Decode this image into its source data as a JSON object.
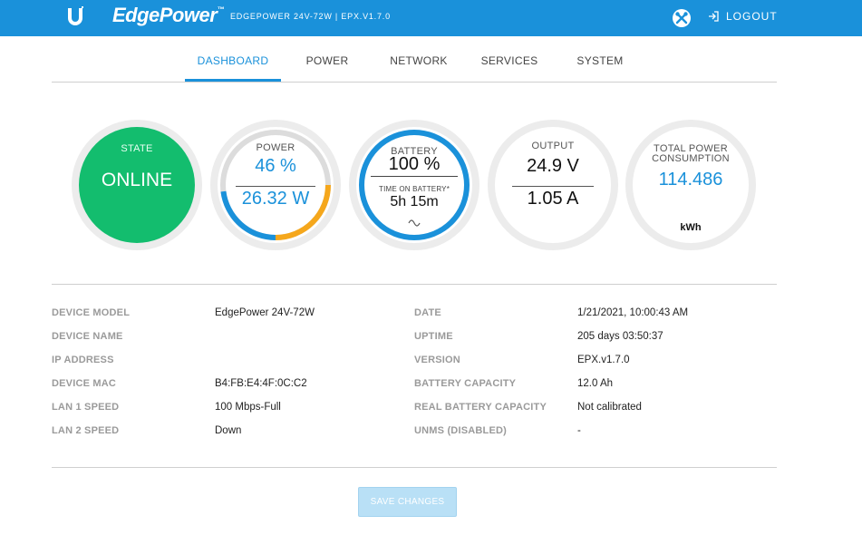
{
  "header": {
    "brand": "EdgePower",
    "brand_tm": "™",
    "model_info": "EDGEPOWER 24V-72W | EPX.V1.7.0",
    "logout_label": "LOGOUT",
    "bar_color": "#1a91da"
  },
  "tabs": [
    {
      "label": "DASHBOARD",
      "active": true
    },
    {
      "label": "POWER",
      "active": false
    },
    {
      "label": "NETWORK",
      "active": false
    },
    {
      "label": "SERVICES",
      "active": false
    },
    {
      "label": "SYSTEM",
      "active": false
    }
  ],
  "gauges": {
    "state": {
      "label": "STATE",
      "value": "ONLINE",
      "color": "#13bd6e"
    },
    "power": {
      "label": "POWER",
      "percent": "46 %",
      "watts": "26.32 W",
      "fraction": 0.46
    },
    "battery": {
      "label": "BATTERY",
      "percent": "100 %",
      "time_label": "TIME ON BATTERY*",
      "time_value": "5h 15m",
      "fraction": 1.0,
      "mode_icon": "ac-wave-icon"
    },
    "output": {
      "label": "OUTPUT",
      "voltage": "24.9 V",
      "current": "1.05 A"
    },
    "consumption": {
      "label_line1": "TOTAL POWER",
      "label_line2": "CONSUMPTION",
      "value": "114.486",
      "unit": "kWh"
    }
  },
  "info_left": [
    {
      "label": "DEVICE MODEL",
      "value": "EdgePower 24V-72W"
    },
    {
      "label": "DEVICE NAME",
      "value": ""
    },
    {
      "label": "IP ADDRESS",
      "value": ""
    },
    {
      "label": "DEVICE MAC",
      "value": "B4:FB:E4:4F:0C:C2"
    },
    {
      "label": "LAN 1 SPEED",
      "value": "100 Mbps-Full"
    },
    {
      "label": "LAN 2 SPEED",
      "value": "Down"
    }
  ],
  "info_right": [
    {
      "label": "DATE",
      "value": "1/21/2021, 10:00:43 AM"
    },
    {
      "label": "UPTIME",
      "value": "205 days 03:50:37"
    },
    {
      "label": "VERSION",
      "value": "EPX.v1.7.0"
    },
    {
      "label": "BATTERY CAPACITY",
      "value": "12.0 Ah"
    },
    {
      "label": "REAL BATTERY CAPACITY",
      "value": "Not calibrated"
    },
    {
      "label": "UNMS (DISABLED)",
      "value": "-"
    }
  ],
  "save_button_label": "SAVE CHANGES"
}
